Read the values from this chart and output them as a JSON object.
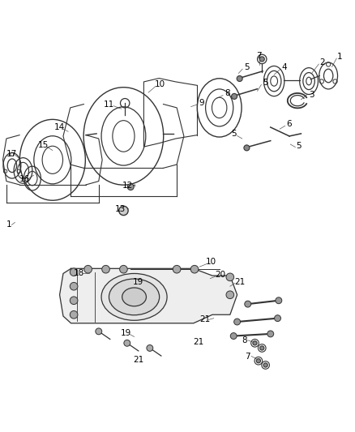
{
  "background_color": "#ffffff",
  "line_color": "#333333",
  "label_color": "#000000",
  "figsize": [
    4.38,
    5.33
  ],
  "dpi": 100
}
